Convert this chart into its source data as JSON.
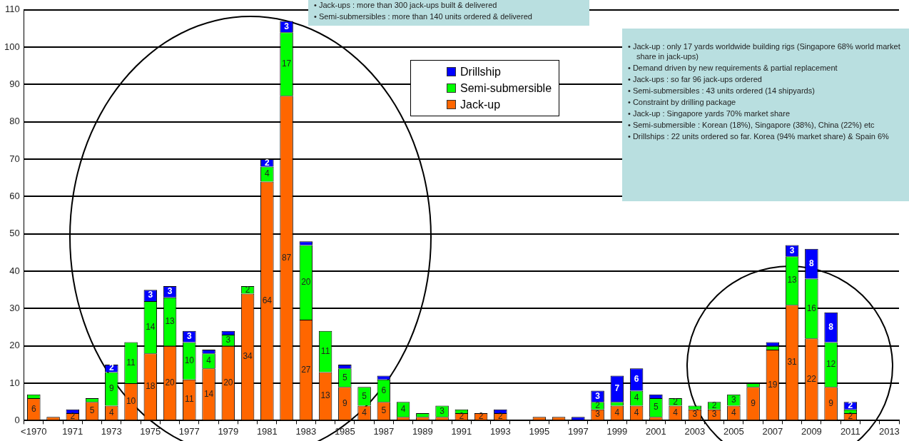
{
  "chart_data": {
    "type": "bar",
    "stacked": true,
    "grid": "y",
    "legend": "top",
    "categories": [
      "<1970",
      null,
      "1971",
      null,
      "1973",
      null,
      "1975",
      null,
      "1977",
      null,
      "1979",
      null,
      "1981",
      null,
      "1983",
      null,
      "1985",
      null,
      "1987",
      null,
      "1989",
      null,
      "1991",
      null,
      "1993",
      null,
      "1995",
      null,
      "1997",
      null,
      "1999",
      null,
      "2001",
      null,
      "2003",
      null,
      "2005",
      null,
      "2007",
      null,
      "2009",
      null,
      "2011",
      null,
      "2013"
    ],
    "ylim": [
      0,
      110
    ],
    "yticks": [
      0,
      10,
      20,
      30,
      40,
      50,
      60,
      70,
      80,
      90,
      100,
      110
    ],
    "series": [
      {
        "name": "Jack-up",
        "color": "#ff6600",
        "values": [
          6,
          1,
          2,
          5,
          4,
          10,
          18,
          20,
          11,
          14,
          20,
          34,
          64,
          87,
          27,
          13,
          9,
          4,
          5,
          1,
          1,
          1,
          2,
          2,
          2,
          null,
          1,
          1,
          0,
          3,
          4,
          4,
          1,
          4,
          3,
          3,
          4,
          9,
          19,
          31,
          22,
          9,
          2,
          null,
          null
        ],
        "value_labels": [
          "6",
          null,
          "2",
          "5",
          "4",
          "10",
          "18",
          "20",
          "11",
          "14",
          "20",
          "34",
          "64",
          "87",
          "27",
          "13",
          "9",
          "4",
          "5",
          null,
          null,
          null,
          "2",
          "2",
          "2",
          null,
          null,
          null,
          null,
          "3",
          "4",
          "4",
          null,
          "4",
          "3",
          "3",
          "4",
          "9",
          "19",
          "31",
          "22",
          "9",
          "2",
          null,
          null
        ]
      },
      {
        "name": "Semi-submersible",
        "color": "#00ff00",
        "values": [
          1,
          0,
          0,
          1,
          9,
          11,
          14,
          13,
          10,
          4,
          3,
          2,
          4,
          17,
          20,
          11,
          5,
          5,
          6,
          4,
          1,
          3,
          1,
          0,
          0,
          null,
          0,
          0,
          0,
          2,
          1,
          4,
          5,
          2,
          1,
          2,
          3,
          1,
          1,
          13,
          16,
          12,
          1,
          null,
          null
        ],
        "value_labels": [
          null,
          null,
          null,
          null,
          "9",
          "11",
          "14",
          "13",
          "10",
          "4",
          "3",
          "2",
          "4",
          "17",
          "20",
          "11",
          "5",
          "5",
          "6",
          "4",
          null,
          "3",
          null,
          null,
          null,
          null,
          null,
          null,
          null,
          "2",
          null,
          "4",
          "5",
          "2",
          null,
          "2",
          "3",
          null,
          null,
          "13",
          "16",
          "12",
          null,
          null,
          null
        ]
      },
      {
        "name": "Drillship",
        "color": "#0000ff",
        "values": [
          0,
          0,
          1,
          0,
          2,
          0,
          3,
          3,
          3,
          1,
          1,
          0,
          2,
          3,
          1,
          0,
          1,
          0,
          1,
          0,
          0,
          0,
          0,
          0,
          1,
          null,
          0,
          0,
          1,
          3,
          7,
          6,
          1,
          0,
          0,
          0,
          0,
          0,
          1,
          3,
          8,
          8,
          2,
          null,
          null
        ],
        "value_labels": [
          null,
          null,
          null,
          null,
          "2",
          null,
          "3",
          "3",
          "3",
          null,
          null,
          null,
          "2",
          "3",
          null,
          null,
          null,
          null,
          null,
          null,
          null,
          null,
          null,
          null,
          null,
          null,
          null,
          null,
          null,
          "3",
          "7",
          "6",
          null,
          null,
          null,
          null,
          null,
          null,
          null,
          "3",
          "8",
          "8",
          "2",
          null,
          null
        ]
      }
    ],
    "annotations": [
      "• Jack-ups : more than 300 jack-ups built & delivered",
      "• Semi-submersibles : more than 140 units ordered & delivered",
      "• Jack-up : only  17 yards worldwide building rigs (Singapore 68% world market share in jack-ups)",
      "• Demand driven by new requirements & partial replacement",
      "• Jack-ups : so far 96 jack-ups ordered",
      "• Semi-submersibles : 43 units ordered (14 shipyards)",
      "• Constraint by drilling package",
      "• Jack-up : Singapore yards 70% market share",
      "• Semi-submersible : Korean (18%), Singapore (38%), China (22%) etc",
      "• Drillships : 22 units ordered  so far.  Korea (94% market  share) & Spain 6%"
    ]
  }
}
